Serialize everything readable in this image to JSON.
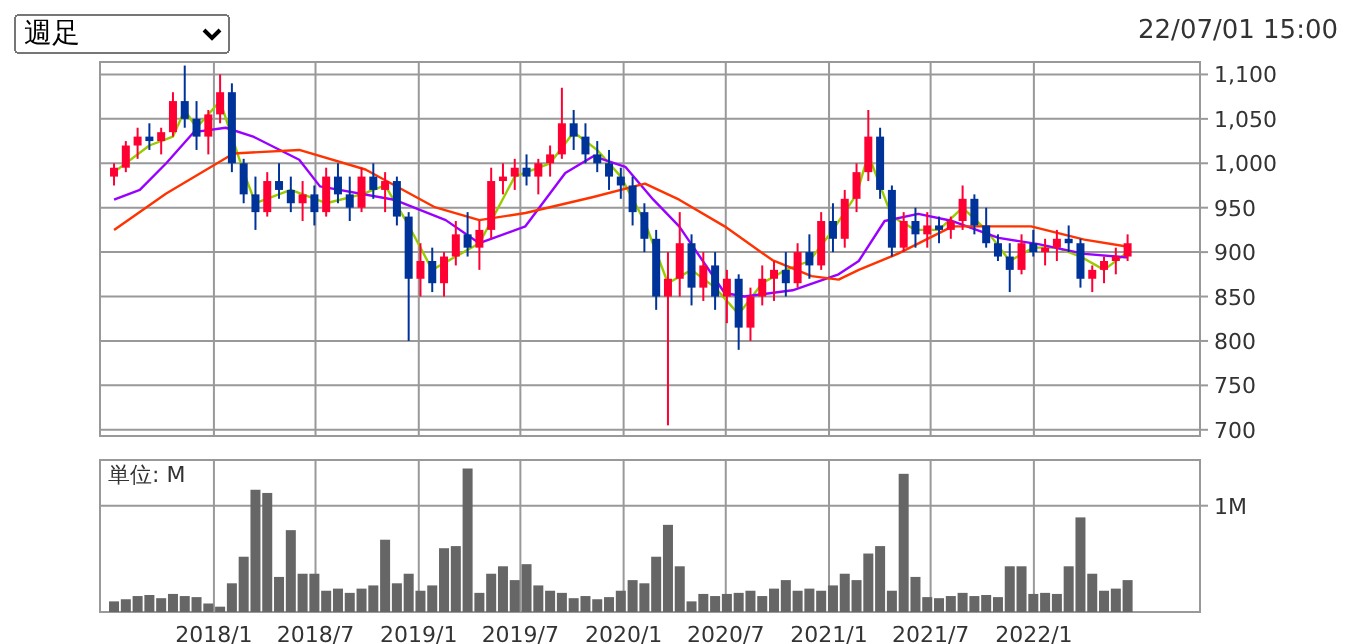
{
  "chart_data": [
    {
      "type": "candlestick",
      "annotations": [
        "週足",
        "22/07/01 15:00"
      ],
      "tick_labels": "y",
      "grid": true,
      "xlim": [
        "2017-06-12",
        "2022-10-24"
      ],
      "ylim": [
        693,
        1114
      ],
      "xticks": [
        {
          "value": "2018-01-01",
          "label": null
        },
        {
          "value": "2018-07-01",
          "label": null
        },
        {
          "value": "2019-01-01",
          "label": null
        },
        {
          "value": "2019-07-01",
          "label": null
        },
        {
          "value": "2020-01-01",
          "label": null
        },
        {
          "value": "2020-07-01",
          "label": null
        },
        {
          "value": "2021-01-01",
          "label": null
        },
        {
          "value": "2021-07-01",
          "label": null
        },
        {
          "value": "2022-01-01",
          "label": null
        }
      ],
      "yticks": [
        700,
        750,
        800,
        850,
        900,
        950,
        {
          "value": 1000,
          "label": "1,000"
        },
        {
          "value": 1050,
          "label": "1,050"
        },
        {
          "value": 1100,
          "label": "1,100"
        }
      ],
      "x": [
        "2017-07-07",
        "2017-07-28",
        "2017-08-18",
        "2017-09-08",
        "2017-09-29",
        "2017-10-20",
        "2017-11-10",
        "2017-12-01",
        "2017-12-22",
        "2018-01-12",
        "2018-02-02",
        "2018-02-23",
        "2018-03-16",
        "2018-04-06",
        "2018-04-27",
        "2018-05-18",
        "2018-06-08",
        "2018-06-29",
        "2018-07-20",
        "2018-08-10",
        "2018-08-31",
        "2018-09-21",
        "2018-10-12",
        "2018-11-02",
        "2018-11-23",
        "2018-12-14",
        "2019-01-04",
        "2019-01-25",
        "2019-02-15",
        "2019-03-08",
        "2019-03-29",
        "2019-04-19",
        "2019-05-10",
        "2019-05-31",
        "2019-06-21",
        "2019-07-12",
        "2019-08-02",
        "2019-08-23",
        "2019-09-13",
        "2019-10-04",
        "2019-10-25",
        "2019-11-15",
        "2019-12-06",
        "2019-12-27",
        "2020-01-17",
        "2020-02-07",
        "2020-02-28",
        "2020-03-20",
        "2020-04-10",
        "2020-05-01",
        "2020-05-22",
        "2020-06-12",
        "2020-07-03",
        "2020-07-24",
        "2020-08-14",
        "2020-09-04",
        "2020-09-25",
        "2020-10-16",
        "2020-11-06",
        "2020-11-27",
        "2020-12-18",
        "2021-01-08",
        "2021-01-29",
        "2021-02-19",
        "2021-03-12",
        "2021-04-02",
        "2021-04-23",
        "2021-05-14",
        "2021-06-04",
        "2021-06-25",
        "2021-07-16",
        "2021-08-06",
        "2021-08-27",
        "2021-09-17",
        "2021-10-08",
        "2021-10-29",
        "2021-11-19",
        "2021-12-10",
        "2021-12-31",
        "2022-01-21",
        "2022-02-11",
        "2022-03-04",
        "2022-03-25",
        "2022-04-15",
        "2022-05-06",
        "2022-05-27",
        "2022-06-17"
      ],
      "ohlc": [
        [
          985,
          1000,
          975,
          995
        ],
        [
          995,
          1025,
          990,
          1020
        ],
        [
          1020,
          1040,
          1005,
          1030
        ],
        [
          1030,
          1045,
          1015,
          1025
        ],
        [
          1025,
          1040,
          1010,
          1035
        ],
        [
          1035,
          1080,
          1030,
          1070
        ],
        [
          1070,
          1110,
          1040,
          1050
        ],
        [
          1050,
          1070,
          1015,
          1030
        ],
        [
          1030,
          1060,
          1010,
          1055
        ],
        [
          1055,
          1100,
          1045,
          1080
        ],
        [
          1080,
          1090,
          990,
          1000
        ],
        [
          1000,
          1005,
          955,
          965
        ],
        [
          965,
          985,
          925,
          945
        ],
        [
          945,
          990,
          940,
          980
        ],
        [
          980,
          1000,
          960,
          970
        ],
        [
          970,
          985,
          945,
          955
        ],
        [
          955,
          980,
          935,
          965
        ],
        [
          965,
          975,
          930,
          945
        ],
        [
          945,
          995,
          940,
          985
        ],
        [
          985,
          1000,
          955,
          965
        ],
        [
          965,
          985,
          935,
          950
        ],
        [
          950,
          995,
          945,
          985
        ],
        [
          985,
          1000,
          960,
          970
        ],
        [
          970,
          990,
          945,
          980
        ],
        [
          980,
          985,
          930,
          940
        ],
        [
          940,
          945,
          800,
          870
        ],
        [
          870,
          910,
          850,
          890
        ],
        [
          890,
          905,
          855,
          865
        ],
        [
          865,
          900,
          850,
          895
        ],
        [
          895,
          935,
          885,
          920
        ],
        [
          920,
          945,
          895,
          905
        ],
        [
          905,
          935,
          880,
          925
        ],
        [
          925,
          995,
          915,
          980
        ],
        [
          980,
          1000,
          965,
          985
        ],
        [
          985,
          1005,
          970,
          995
        ],
        [
          995,
          1010,
          975,
          985
        ],
        [
          985,
          1005,
          965,
          1000
        ],
        [
          1000,
          1020,
          985,
          1010
        ],
        [
          1010,
          1085,
          1005,
          1045
        ],
        [
          1045,
          1060,
          1015,
          1030
        ],
        [
          1030,
          1045,
          1000,
          1010
        ],
        [
          1010,
          1025,
          990,
          1000
        ],
        [
          1000,
          1015,
          970,
          985
        ],
        [
          985,
          995,
          960,
          975
        ],
        [
          975,
          985,
          930,
          945
        ],
        [
          945,
          955,
          900,
          915
        ],
        [
          915,
          925,
          835,
          850
        ],
        [
          850,
          900,
          705,
          870
        ],
        [
          870,
          945,
          850,
          910
        ],
        [
          910,
          920,
          840,
          860
        ],
        [
          860,
          900,
          845,
          885
        ],
        [
          885,
          900,
          835,
          850
        ],
        [
          850,
          880,
          820,
          870
        ],
        [
          870,
          875,
          790,
          815
        ],
        [
          815,
          860,
          800,
          850
        ],
        [
          850,
          885,
          840,
          870
        ],
        [
          870,
          890,
          845,
          880
        ],
        [
          880,
          900,
          850,
          865
        ],
        [
          865,
          910,
          860,
          900
        ],
        [
          900,
          920,
          870,
          885
        ],
        [
          885,
          945,
          880,
          935
        ],
        [
          935,
          955,
          900,
          915
        ],
        [
          915,
          970,
          905,
          960
        ],
        [
          960,
          1000,
          945,
          990
        ],
        [
          990,
          1060,
          980,
          1030
        ],
        [
          1030,
          1040,
          960,
          970
        ],
        [
          970,
          975,
          895,
          905
        ],
        [
          905,
          945,
          900,
          935
        ],
        [
          935,
          950,
          905,
          920
        ],
        [
          920,
          945,
          905,
          930
        ],
        [
          930,
          940,
          910,
          925
        ],
        [
          925,
          940,
          915,
          935
        ],
        [
          935,
          975,
          925,
          960
        ],
        [
          960,
          965,
          920,
          930
        ],
        [
          930,
          950,
          905,
          910
        ],
        [
          910,
          920,
          890,
          895
        ],
        [
          895,
          910,
          855,
          880
        ],
        [
          880,
          920,
          875,
          910
        ],
        [
          910,
          925,
          895,
          900
        ],
        [
          900,
          915,
          885,
          905
        ],
        [
          905,
          925,
          890,
          915
        ],
        [
          915,
          930,
          900,
          910
        ],
        [
          910,
          915,
          860,
          870
        ],
        [
          870,
          885,
          855,
          880
        ],
        [
          880,
          895,
          865,
          890
        ],
        [
          890,
          905,
          875,
          895
        ],
        [
          895,
          920,
          890,
          910
        ]
      ],
      "colors": [
        "#ff0033",
        "#ff0033",
        "#ff0033",
        "#003399",
        "#ff0033",
        "#ff0033",
        "#003399",
        "#003399",
        "#ff0033",
        "#ff0033",
        "#003399",
        "#003399",
        "#003399",
        "#ff0033",
        "#003399",
        "#003399",
        "#ff0033",
        "#003399",
        "#ff0033",
        "#003399",
        "#003399",
        "#ff0033",
        "#003399",
        "#ff0033",
        "#003399",
        "#003399",
        "#ff0033",
        "#003399",
        "#ff0033",
        "#ff0033",
        "#003399",
        "#ff0033",
        "#ff0033",
        "#ff0033",
        "#ff0033",
        "#003399",
        "#ff0033",
        "#ff0033",
        "#ff0033",
        "#003399",
        "#003399",
        "#003399",
        "#003399",
        "#003399",
        "#003399",
        "#003399",
        "#003399",
        "#ff0033",
        "#ff0033",
        "#003399",
        "#ff0033",
        "#003399",
        "#ff0033",
        "#003399",
        "#ff0033",
        "#ff0033",
        "#ff0033",
        "#003399",
        "#ff0033",
        "#003399",
        "#ff0033",
        "#003399",
        "#ff0033",
        "#ff0033",
        "#ff0033",
        "#003399",
        "#003399",
        "#ff0033",
        "#003399",
        "#ff0033",
        "#003399",
        "#ff0033",
        "#ff0033",
        "#003399",
        "#003399",
        "#003399",
        "#003399",
        "#ff0033",
        "#003399",
        "#ff0033",
        "#ff0033",
        "#003399",
        "#003399",
        "#ff0033",
        "#ff0033",
        "#ff0033",
        "#ff0033"
      ],
      "series": [
        {
          "type": "line",
          "color": "#99cc00",
          "x": [
            "2017-07-07",
            "2017-09-08",
            "2017-10-20",
            "2017-11-10",
            "2017-12-01",
            "2018-01-12",
            "2018-02-23",
            "2018-03-16",
            "2018-05-18",
            "2018-07-20",
            "2018-09-21",
            "2018-11-02",
            "2018-12-14",
            "2019-01-25",
            "2019-03-08",
            "2019-04-19",
            "2019-06-21",
            "2019-08-23",
            "2019-10-04",
            "2019-11-15",
            "2019-12-27",
            "2020-02-07",
            "2020-03-20",
            "2020-05-01",
            "2020-06-12",
            "2020-07-24",
            "2020-09-04",
            "2020-10-16",
            "2020-11-27",
            "2021-01-08",
            "2021-02-19",
            "2021-03-12",
            "2021-04-23",
            "2021-06-04",
            "2021-07-16",
            "2021-08-27",
            "2021-10-08",
            "2021-11-19",
            "2021-12-31",
            "2022-02-11",
            "2022-03-25",
            "2022-05-06",
            "2022-06-17"
          ],
          "values": [
            990,
            1020,
            1030,
            1060,
            1040,
            1070,
            990,
            955,
            970,
            955,
            965,
            975,
            930,
            880,
            895,
            910,
            985,
            1000,
            1035,
            1015,
            985,
            935,
            865,
            880,
            860,
            830,
            865,
            880,
            890,
            925,
            965,
            1010,
            940,
            925,
            925,
            950,
            925,
            890,
            905,
            905,
            895,
            880,
            900
          ]
        },
        {
          "type": "line",
          "color": "#9900ff",
          "x": [
            "2017-07-07",
            "2017-08-22",
            "2017-10-08",
            "2017-11-26",
            "2018-01-22",
            "2018-03-12",
            "2018-06-02",
            "2018-07-09",
            "2018-11-18",
            "2019-02-18",
            "2019-04-19",
            "2019-07-10",
            "2019-09-19",
            "2019-11-08",
            "2020-01-04",
            "2020-02-23",
            "2020-04-09",
            "2020-06-29",
            "2020-08-03",
            "2020-10-28",
            "2021-01-18",
            "2021-02-23",
            "2021-04-10",
            "2021-06-09",
            "2021-08-09",
            "2021-10-30",
            "2022-01-09",
            "2022-04-01",
            "2022-06-18"
          ],
          "values": [
            959,
            970,
            1000,
            1035,
            1040,
            1030,
            1004,
            974,
            959,
            936,
            910,
            929,
            989,
            1008,
            996,
            959,
            929,
            854,
            850,
            857,
            875,
            890,
            935,
            943,
            935,
            916,
            909,
            898,
            894
          ]
        },
        {
          "type": "line",
          "color": "#ff3300",
          "x": [
            "2017-07-07",
            "2017-10-08",
            "2018-02-05",
            "2018-06-02",
            "2018-09-28",
            "2019-01-28",
            "2019-04-19",
            "2019-07-10",
            "2019-11-08",
            "2020-02-08",
            "2020-04-09",
            "2020-06-29",
            "2020-09-22",
            "2020-12-01",
            "2021-01-18",
            "2021-02-23",
            "2021-05-03",
            "2021-08-09",
            "2021-12-27",
            "2022-04-01",
            "2022-06-18"
          ],
          "values": [
            925,
            966,
            1011,
            1015,
            993,
            951,
            936,
            944,
            962,
            977,
            959,
            929,
            891,
            873,
            869,
            880,
            898,
            929,
            929,
            914,
            906
          ]
        }
      ]
    },
    {
      "type": "bar",
      "ylabel": "単位: M",
      "grid": true,
      "color": "#666666",
      "xlim": [
        "2017-06-12",
        "2022-10-24"
      ],
      "ylim": [
        0,
        1.43
      ],
      "xticks": [
        {
          "value": "2018-01-01",
          "label": "2018/1"
        },
        {
          "value": "2018-07-01",
          "label": "2018/7"
        },
        {
          "value": "2019-01-01",
          "label": "2019/1"
        },
        {
          "value": "2019-07-01",
          "label": "2019/7"
        },
        {
          "value": "2020-01-01",
          "label": "2020/1"
        },
        {
          "value": "2020-07-01",
          "label": "2020/7"
        },
        {
          "value": "2021-01-01",
          "label": "2021/1"
        },
        {
          "value": "2021-07-01",
          "label": "2021/7"
        },
        {
          "value": "2022-01-01",
          "label": "2022/1"
        }
      ],
      "yticks": [
        {
          "value": 1,
          "label": "1M"
        }
      ],
      "x": [
        "2017-07-07",
        "2017-07-28",
        "2017-08-18",
        "2017-09-08",
        "2017-09-29",
        "2017-10-20",
        "2017-11-10",
        "2017-12-01",
        "2017-12-22",
        "2018-01-12",
        "2018-02-02",
        "2018-02-23",
        "2018-03-16",
        "2018-04-06",
        "2018-04-27",
        "2018-05-18",
        "2018-06-08",
        "2018-06-29",
        "2018-07-20",
        "2018-08-10",
        "2018-08-31",
        "2018-09-21",
        "2018-10-12",
        "2018-11-02",
        "2018-11-23",
        "2018-12-14",
        "2019-01-04",
        "2019-01-25",
        "2019-02-15",
        "2019-03-08",
        "2019-03-29",
        "2019-04-19",
        "2019-05-10",
        "2019-05-31",
        "2019-06-21",
        "2019-07-12",
        "2019-08-02",
        "2019-08-23",
        "2019-09-13",
        "2019-10-04",
        "2019-10-25",
        "2019-11-15",
        "2019-12-06",
        "2019-12-27",
        "2020-01-17",
        "2020-02-07",
        "2020-02-28",
        "2020-03-20",
        "2020-04-10",
        "2020-05-01",
        "2020-05-22",
        "2020-06-12",
        "2020-07-03",
        "2020-07-24",
        "2020-08-14",
        "2020-09-04",
        "2020-09-25",
        "2020-10-16",
        "2020-11-06",
        "2020-11-27",
        "2020-12-18",
        "2021-01-08",
        "2021-01-29",
        "2021-02-19",
        "2021-03-12",
        "2021-04-02",
        "2021-04-23",
        "2021-05-14",
        "2021-06-04",
        "2021-06-25",
        "2021-07-16",
        "2021-08-06",
        "2021-08-27",
        "2021-09-17",
        "2021-10-08",
        "2021-10-29",
        "2021-11-19",
        "2021-12-10",
        "2021-12-31",
        "2022-01-21",
        "2022-02-11",
        "2022-03-04",
        "2022-03-25",
        "2022-04-15",
        "2022-05-06",
        "2022-05-27",
        "2022-06-17"
      ],
      "values": [
        0.1,
        0.12,
        0.15,
        0.16,
        0.13,
        0.17,
        0.15,
        0.14,
        0.08,
        0.05,
        0.27,
        0.52,
        1.15,
        1.12,
        0.33,
        0.77,
        0.36,
        0.36,
        0.2,
        0.22,
        0.18,
        0.22,
        0.25,
        0.68,
        0.27,
        0.36,
        0.2,
        0.25,
        0.6,
        0.62,
        1.35,
        0.18,
        0.36,
        0.43,
        0.3,
        0.45,
        0.25,
        0.2,
        0.18,
        0.13,
        0.15,
        0.12,
        0.14,
        0.2,
        0.3,
        0.27,
        0.52,
        0.82,
        0.43,
        0.1,
        0.17,
        0.15,
        0.17,
        0.18,
        0.2,
        0.15,
        0.22,
        0.3,
        0.2,
        0.22,
        0.2,
        0.25,
        0.36,
        0.3,
        0.55,
        0.62,
        0.2,
        1.3,
        0.33,
        0.14,
        0.13,
        0.15,
        0.18,
        0.15,
        0.16,
        0.14,
        0.43,
        0.43,
        0.17,
        0.18,
        0.17,
        0.43,
        0.89,
        0.36,
        0.2,
        0.22,
        0.3
      ]
    }
  ]
}
